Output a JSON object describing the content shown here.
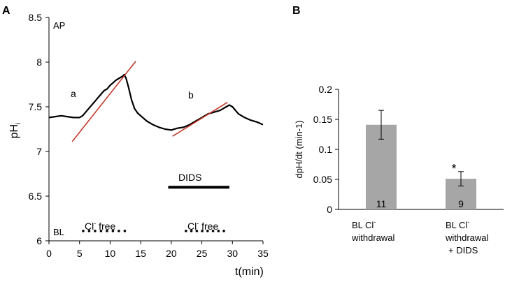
{
  "panel_a": {
    "letter": "A",
    "y_axis_label_main": "pH",
    "y_axis_label_sub": "i",
    "x_axis_label": "t(min)",
    "annotation_ap": "AP",
    "annotation_bl": "BL",
    "slope_label_a": "a",
    "slope_label_b": "b",
    "dids_label": "DIDS",
    "cl_free_prefix": "Cl",
    "cl_free_superscript": "-",
    "cl_free_suffix": " free"
  },
  "panel_b": {
    "letter": "B",
    "y_axis_label": "dpH/dt (min-1)",
    "significance_marker": "*",
    "bar_labels": [
      {
        "line1_prefix": "BL Cl",
        "line1_sup": "-",
        "line2": "withdrawal",
        "line3": ""
      },
      {
        "line1_prefix": "BL Cl",
        "line1_sup": "-",
        "line2": "withdrawal",
        "line3": "+ DIDS"
      }
    ]
  },
  "chart_data": [
    {
      "type": "line",
      "title": "",
      "xlabel": "t(min)",
      "ylabel": "pHi",
      "xlim": [
        0,
        35
      ],
      "ylim": [
        6,
        8.5
      ],
      "xticks": [
        0,
        5,
        10,
        15,
        20,
        25,
        30,
        35
      ],
      "yticks": [
        6,
        6.5,
        7,
        7.5,
        8,
        8.5
      ],
      "xtick_labels": [
        "0",
        "5",
        "10",
        "15",
        "20",
        "25",
        "30",
        "35"
      ],
      "ytick_labels": [
        "6",
        "6.5",
        "7",
        "7.5",
        "8",
        "8.5"
      ],
      "series": [
        {
          "name": "pHi trace",
          "color": "#000000",
          "x": [
            0,
            1,
            2,
            3,
            4,
            5,
            5.5,
            6,
            6.5,
            7,
            7.5,
            8,
            8.5,
            9,
            9.5,
            10,
            10.5,
            11,
            11.5,
            12,
            12.3,
            12.6,
            13,
            13.5,
            14,
            14.5,
            15,
            16,
            17,
            18,
            19,
            20,
            21,
            22,
            23,
            24,
            25,
            26,
            27,
            28,
            29,
            29.5,
            30,
            31,
            32,
            33,
            34,
            35
          ],
          "y": [
            7.38,
            7.39,
            7.4,
            7.39,
            7.38,
            7.38,
            7.4,
            7.44,
            7.48,
            7.52,
            7.56,
            7.6,
            7.64,
            7.68,
            7.7,
            7.74,
            7.77,
            7.8,
            7.82,
            7.84,
            7.86,
            7.82,
            7.72,
            7.58,
            7.48,
            7.43,
            7.4,
            7.34,
            7.3,
            7.27,
            7.25,
            7.24,
            7.26,
            7.27,
            7.3,
            7.34,
            7.38,
            7.42,
            7.44,
            7.46,
            7.5,
            7.52,
            7.5,
            7.42,
            7.38,
            7.35,
            7.33,
            7.3
          ]
        },
        {
          "name": "slope fit a",
          "color": "#c0392b",
          "x": [
            3.8,
            14.2
          ],
          "y": [
            7.11,
            8.01
          ]
        },
        {
          "name": "slope fit b",
          "color": "#c0392b",
          "x": [
            20.2,
            29.2
          ],
          "y": [
            7.17,
            7.55
          ]
        }
      ],
      "annotations": [
        {
          "text": "a",
          "x": 3.8,
          "y": 7.65
        },
        {
          "text": "b",
          "x": 23.2,
          "y": 7.62
        },
        {
          "text": "DIDS",
          "bar_x": [
            19.5,
            29.5
          ],
          "y": 6.6
        },
        {
          "text": "Cl- free",
          "dots_x": [
            5.6,
            12.4
          ],
          "y": 6.11
        },
        {
          "text": "Cl- free",
          "dots_x": [
            22.4,
            28.6
          ],
          "y": 6.11
        }
      ]
    },
    {
      "type": "bar",
      "title": "",
      "xlabel": "",
      "ylabel": "dpH/dt (min-1)",
      "ylim": [
        0,
        0.2
      ],
      "yticks": [
        0,
        0.05,
        0.1,
        0.15,
        0.2
      ],
      "ytick_labels": [
        "0",
        "0.05",
        "0.1",
        "0.15",
        "0.2"
      ],
      "categories": [
        "BL Cl- withdrawal",
        "BL Cl- withdrawal + DIDS"
      ],
      "values": [
        0.141,
        0.051
      ],
      "errors": [
        0.024,
        0.012
      ],
      "n": [
        "11",
        "9"
      ],
      "bar_color": "#a6a6a6",
      "significance": [
        "",
        "*"
      ]
    }
  ]
}
